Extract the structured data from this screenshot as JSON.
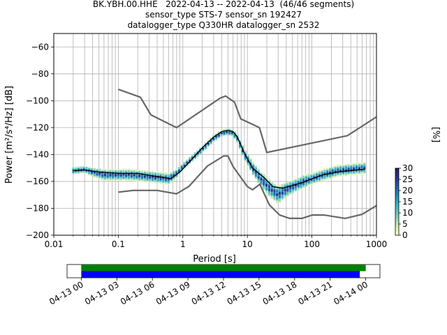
{
  "title_lines": [
    "BK.YBH.00.HHE   2022-04-13 -- 2022-04-13  (46/46 segments)",
    "sensor_type STS-7 sensor_sn 192427",
    "datalogger_type Q330HR datalogger_sn 2532"
  ],
  "colorbar": {
    "label": "[%]",
    "ticks": [
      "0",
      "5",
      "10",
      "15",
      "20",
      "25",
      "30"
    ],
    "tick_values": [
      0,
      5,
      10,
      15,
      20,
      25,
      30
    ],
    "range": [
      0,
      30
    ],
    "colormap": [
      "#ffffcc",
      "#c7e9b4",
      "#7fcdbb",
      "#41b6c4",
      "#1d91c0",
      "#225ea8",
      "#253494",
      "#2c1b4e"
    ]
  },
  "timeline": {
    "tick_labels": [
      "04-13 00",
      "04-13 03",
      "04-13 06",
      "04-13 09",
      "04-13 12",
      "04-13 15",
      "04-13 18",
      "04-13 21",
      "04-14 00"
    ],
    "tick_hours": [
      0,
      3,
      6,
      9,
      12,
      15,
      18,
      21,
      24
    ],
    "range_hours": [
      -1.2,
      25.2
    ],
    "bars": [
      {
        "color": "#008000",
        "start_hours": 0,
        "end_hours": 24.0
      },
      {
        "color": "#0000ff",
        "start_hours": 0,
        "end_hours": 23.5
      }
    ]
  },
  "chart_data": {
    "type": "heatmap",
    "title": "BK.YBH.00.HHE   2022-04-13 -- 2022-04-13  (46/46 segments)",
    "xlabel": "Period [s]",
    "ylabel": "Power [m²/s⁴/Hz] [dB]",
    "xscale": "log",
    "xlim": [
      0.01,
      1000
    ],
    "ylim": [
      -200,
      -50
    ],
    "x_tick_labels": [
      "0.01",
      "0.1",
      "1",
      "10",
      "100",
      "1000"
    ],
    "x_ticks": [
      0.01,
      0.1,
      1,
      10,
      100,
      1000
    ],
    "y_tick_labels": [
      "−60",
      "−80",
      "−100",
      "−120",
      "−140",
      "−160",
      "−180",
      "−200"
    ],
    "y_ticks": [
      -60,
      -80,
      -100,
      -120,
      -140,
      -160,
      -180,
      -200
    ],
    "grid": true,
    "noise_model_color": "#666666",
    "high_noise_model": {
      "x": [
        0.1,
        0.22,
        0.32,
        0.8,
        3.8,
        4.6,
        6.3,
        7.9,
        15.4,
        20,
        354.8,
        1000
      ],
      "y": [
        -91.5,
        -97.4,
        -110.5,
        -120,
        -98,
        -96.5,
        -101,
        -113.5,
        -120,
        -138.5,
        -126,
        -112
      ]
    },
    "low_noise_model": {
      "x": [
        0.1,
        0.17,
        0.4,
        0.8,
        1.24,
        2.4,
        4.3,
        5,
        6,
        10,
        12,
        15.6,
        21.9,
        31.6,
        45,
        70,
        101,
        154,
        328,
        600,
        1000
      ],
      "y": [
        -168,
        -166.7,
        -166.7,
        -169.2,
        -163.7,
        -148.6,
        -141.1,
        -141.1,
        -149,
        -163.8,
        -166.2,
        -162.1,
        -177.5,
        -185,
        -187.5,
        -187.5,
        -185,
        -185,
        -187.5,
        -184.5,
        -178
      ]
    },
    "mean_psd": {
      "color": "#000000",
      "x": [
        0.02,
        0.03,
        0.05,
        0.1,
        0.2,
        0.35,
        0.5,
        0.65,
        0.9,
        1.3,
        2,
        3,
        4,
        5,
        6,
        7,
        9,
        12,
        18,
        25,
        35,
        50,
        70,
        100,
        150,
        250,
        400,
        650
      ],
      "y": [
        -152,
        -151.5,
        -153,
        -154,
        -154,
        -156,
        -157,
        -158,
        -153,
        -145,
        -135,
        -127,
        -123,
        -122,
        -123,
        -127,
        -139,
        -150,
        -157,
        -164,
        -165,
        -163,
        -161,
        -158,
        -155,
        -153,
        -152,
        -151
      ]
    },
    "psd_hotspots": {
      "x": [
        0.02,
        0.03,
        0.04,
        0.06,
        0.1,
        0.15,
        0.25,
        0.4,
        0.6,
        0.8,
        1.0,
        1.3,
        2,
        3,
        4,
        5,
        6,
        7,
        9,
        12,
        16,
        22,
        30,
        40,
        55,
        75,
        100,
        150,
        250,
        400,
        650
      ],
      "y": [
        -152,
        -151,
        -153,
        -155,
        -155,
        -155,
        -156,
        -157,
        -158,
        -154,
        -149,
        -144,
        -136,
        -128,
        -124,
        -123,
        -124,
        -128,
        -140,
        -150,
        -158,
        -165,
        -170,
        -166,
        -163,
        -160,
        -158,
        -155,
        -152,
        -151,
        -150
      ],
      "spread_db": [
        3,
        3,
        4,
        5,
        5,
        5,
        5,
        5,
        5,
        4,
        3,
        3,
        3,
        3,
        3,
        3,
        3,
        4,
        5,
        6,
        7,
        8,
        8,
        7,
        6,
        6,
        5,
        5,
        5,
        5,
        5
      ]
    }
  }
}
